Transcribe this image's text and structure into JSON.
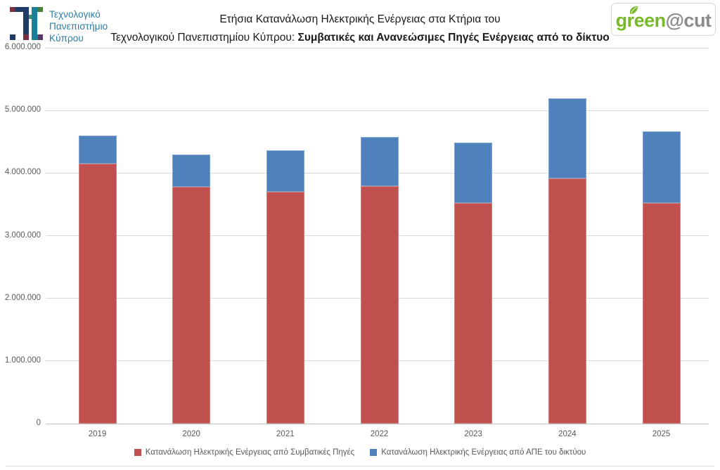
{
  "header": {
    "university": {
      "line1": "Τεχνολογικό",
      "line2": "Πανεπιστήμιο",
      "line3": "Κύπρου"
    },
    "title": {
      "line1": "Ετήσια Κατανάλωση Ηλεκτρικής Ενέργειας στα Κτήρια του",
      "line2_normal": "Τεχνολογικού Πανεπιστημίου Κύπρου: ",
      "line2_bold": "Συμβατικές και Ανανεώσιμες Πηγές Ενέργειας από το δίκτυο"
    },
    "brand": {
      "green_part": "green",
      "gray_part": "@cut",
      "green_color": "#79b829",
      "gray_color": "#8a8a8a"
    }
  },
  "chart_data": {
    "type": "bar",
    "stacked": true,
    "title": "Ετήσια Κατανάλωση Ηλεκτρικής Ενέργειας στα Κτήρια του Τεχνολογικού Πανεπιστημίου Κύπρου: Συμβατικές και Ανανεώσιμες Πηγές Ενέργειας από το δίκτυο",
    "categories": [
      "2019",
      "2020",
      "2021",
      "2022",
      "2023",
      "2024",
      "2025"
    ],
    "series": [
      {
        "name": "Κατανάλωση Ηλεκτρικής Ενέργειας από Συμβατικές Πηγές",
        "color": "#C0504D",
        "values": [
          4150000,
          3780000,
          3700000,
          3790000,
          3520000,
          3910000,
          3520000
        ]
      },
      {
        "name": "Κατανάλωση Ηλεκτρικής Ενέργειας από ΑΠΕ του δικτύου",
        "color": "#4F81BD",
        "values": [
          450000,
          510000,
          660000,
          790000,
          970000,
          1280000,
          1150000
        ]
      }
    ],
    "ylim": [
      0,
      6000000
    ],
    "ytick_step": 1000000,
    "ytick_labels": [
      "0",
      "1.000.000",
      "2.000.000",
      "3.000.000",
      "4.000.000",
      "5.000.000",
      "6.000.000"
    ],
    "grid": true,
    "legend_position": "bottom",
    "xlabel": "",
    "ylabel": ""
  }
}
